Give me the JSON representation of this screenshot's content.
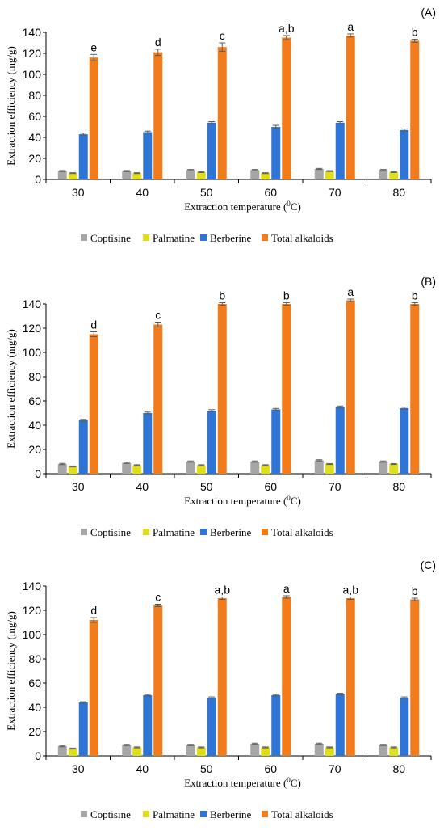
{
  "colors": {
    "Coptisine": "#a6a6a6",
    "Palmatine": "#dede1b",
    "Berberine": "#2e75d6",
    "Total alkaloids": "#f27c1c",
    "error_bar": "#5b5b5b"
  },
  "chart_data": [
    {
      "type": "bar",
      "panel_label": "(A)",
      "categories": [
        "30",
        "40",
        "50",
        "60",
        "70",
        "80"
      ],
      "xlabel_main": "Extraction temperature (",
      "xlabel_sup": "0",
      "xlabel_end": "C)",
      "ylabel": "Extraction efficiency (mg/g)",
      "ylim": [
        0,
        140
      ],
      "yticks": [
        "0",
        "20",
        "40",
        "60",
        "80",
        "100",
        "120",
        "140"
      ],
      "legend_position": "bottom",
      "series": [
        {
          "name": "Coptisine",
          "values": [
            8,
            8,
            9,
            9,
            10,
            9
          ],
          "errors": [
            0.5,
            0.5,
            0.5,
            0.5,
            0.5,
            0.5
          ]
        },
        {
          "name": "Palmatine",
          "values": [
            6,
            6,
            7,
            6,
            8,
            7
          ],
          "errors": [
            0.4,
            0.4,
            0.4,
            0.4,
            0.4,
            0.4
          ]
        },
        {
          "name": "Berberine",
          "values": [
            43,
            45,
            54,
            50,
            54,
            47
          ],
          "errors": [
            1,
            1,
            1,
            1.5,
            1,
            1
          ]
        },
        {
          "name": "Total alkaloids",
          "values": [
            116,
            121,
            126,
            135,
            137,
            132
          ],
          "errors": [
            3,
            3,
            4,
            2,
            1.5,
            1.5
          ]
        }
      ],
      "annotations": [
        "e",
        "d",
        "c",
        "a,b",
        "a",
        "b"
      ]
    },
    {
      "type": "bar",
      "panel_label": "(B)",
      "categories": [
        "30",
        "40",
        "50",
        "60",
        "70",
        "80"
      ],
      "xlabel_main": "Extraction temperature (",
      "xlabel_sup": "0",
      "xlabel_end": "C)",
      "ylabel": "Extraction efficiency (mg/g)",
      "ylim": [
        0,
        140
      ],
      "yticks": [
        "0",
        "20",
        "40",
        "60",
        "80",
        "100",
        "120",
        "140"
      ],
      "legend_position": "bottom",
      "series": [
        {
          "name": "Coptisine",
          "values": [
            8,
            9,
            10,
            10,
            11,
            10
          ],
          "errors": [
            0.5,
            0.5,
            0.5,
            0.5,
            0.5,
            0.5
          ]
        },
        {
          "name": "Palmatine",
          "values": [
            6,
            7,
            7,
            7,
            8,
            8
          ],
          "errors": [
            0.4,
            0.4,
            0.4,
            0.4,
            0.4,
            0.4
          ]
        },
        {
          "name": "Berberine",
          "values": [
            44,
            50,
            52,
            53,
            55,
            54
          ],
          "errors": [
            0.8,
            0.8,
            0.8,
            0.8,
            0.8,
            0.8
          ]
        },
        {
          "name": "Total alkaloids",
          "values": [
            115,
            123,
            140,
            140,
            143,
            140
          ],
          "errors": [
            2,
            2,
            1,
            1,
            1,
            1
          ]
        }
      ],
      "annotations": [
        "d",
        "c",
        "b",
        "b",
        "a",
        "b"
      ]
    },
    {
      "type": "bar",
      "panel_label": "(C)",
      "categories": [
        "30",
        "40",
        "50",
        "60",
        "70",
        "80"
      ],
      "xlabel_main": "Extraction temperature (",
      "xlabel_sup": "0",
      "xlabel_end": "C)",
      "ylabel": "Extraction efficiency (mg/g)",
      "ylim": [
        0,
        140
      ],
      "yticks": [
        "0",
        "20",
        "40",
        "60",
        "80",
        "100",
        "120",
        "140"
      ],
      "legend_position": "bottom",
      "series": [
        {
          "name": "Coptisine",
          "values": [
            8,
            9,
            9,
            10,
            10,
            9
          ],
          "errors": [
            0.5,
            0.5,
            0.5,
            0.5,
            0.5,
            0.5
          ]
        },
        {
          "name": "Palmatine",
          "values": [
            6,
            7,
            7,
            7,
            7,
            7
          ],
          "errors": [
            0.4,
            0.4,
            0.4,
            0.4,
            0.4,
            0.4
          ]
        },
        {
          "name": "Berberine",
          "values": [
            44,
            50,
            48,
            50,
            51,
            48
          ],
          "errors": [
            0.6,
            0.6,
            0.6,
            0.6,
            0.6,
            0.6
          ]
        },
        {
          "name": "Total alkaloids",
          "values": [
            112,
            124,
            130,
            131,
            130,
            129
          ],
          "errors": [
            2,
            1,
            1,
            1,
            1,
            1
          ]
        }
      ],
      "annotations": [
        "d",
        "c",
        "a,b",
        "a",
        "a,b",
        "b"
      ]
    }
  ]
}
